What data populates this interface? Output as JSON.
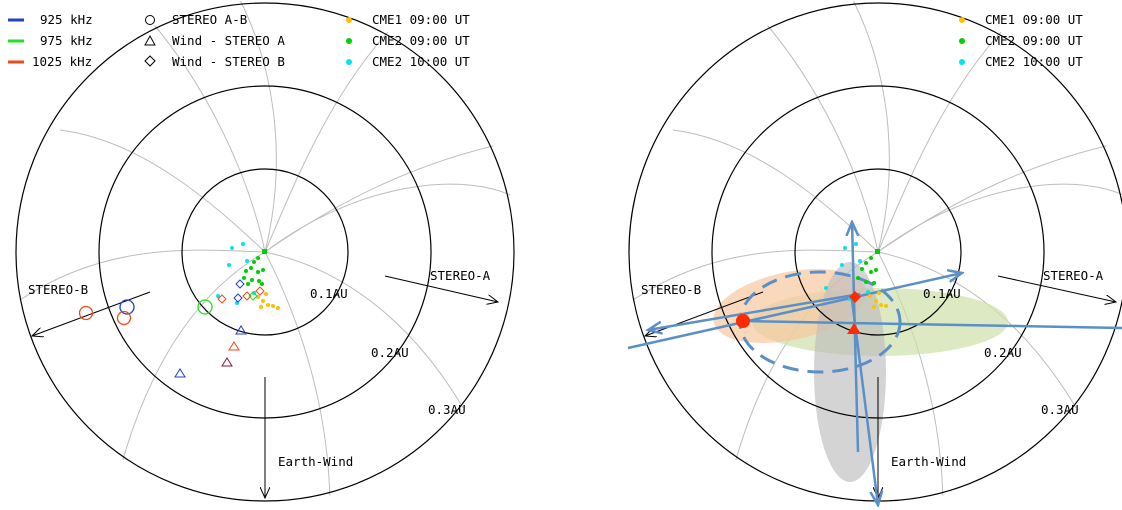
{
  "colors": {
    "f925": "#1f3fd6",
    "f975": "#22e022",
    "f1025": "#f04a1a",
    "cme1": "#ffc000",
    "cme2_0900": "#00d000",
    "cme2_1000": "#00e5ee",
    "arrow_blue": "#5b8fc8",
    "ellipse_orange": "#f6c8a0",
    "ellipse_green": "#cfe0a8",
    "ellipse_gray": "#c8c8c8",
    "marker_red": "#ff2a00"
  },
  "left_panel": {
    "legend_freq": [
      "925 kHz",
      "975 kHz",
      "1025 kHz"
    ],
    "legend_pair": [
      "STEREO A-B",
      "Wind - STEREO A",
      "Wind - STEREO B"
    ],
    "legend_cme": [
      "CME1 09:00 UT",
      "CME2 09:00 UT",
      "CME2 10:00 UT"
    ],
    "labels": {
      "stereo_b": "STEREO-B",
      "stereo_a": "STEREO-A",
      "earth_wind": "Earth-Wind",
      "r1": "0.1AU",
      "r2": "0.2AU",
      "r3": "0.3AU"
    }
  },
  "right_panel": {
    "legend_cme": [
      "CME1 09:00 UT",
      "CME2 09:00 UT",
      "CME2 10:00 UT"
    ],
    "labels": {
      "stereo_b": "STEREO-B",
      "stereo_a": "STEREO-A",
      "earth_wind": "Earth-Wind",
      "r1": "0.1AU",
      "r2": "0.2AU",
      "r3": "0.3AU"
    }
  }
}
